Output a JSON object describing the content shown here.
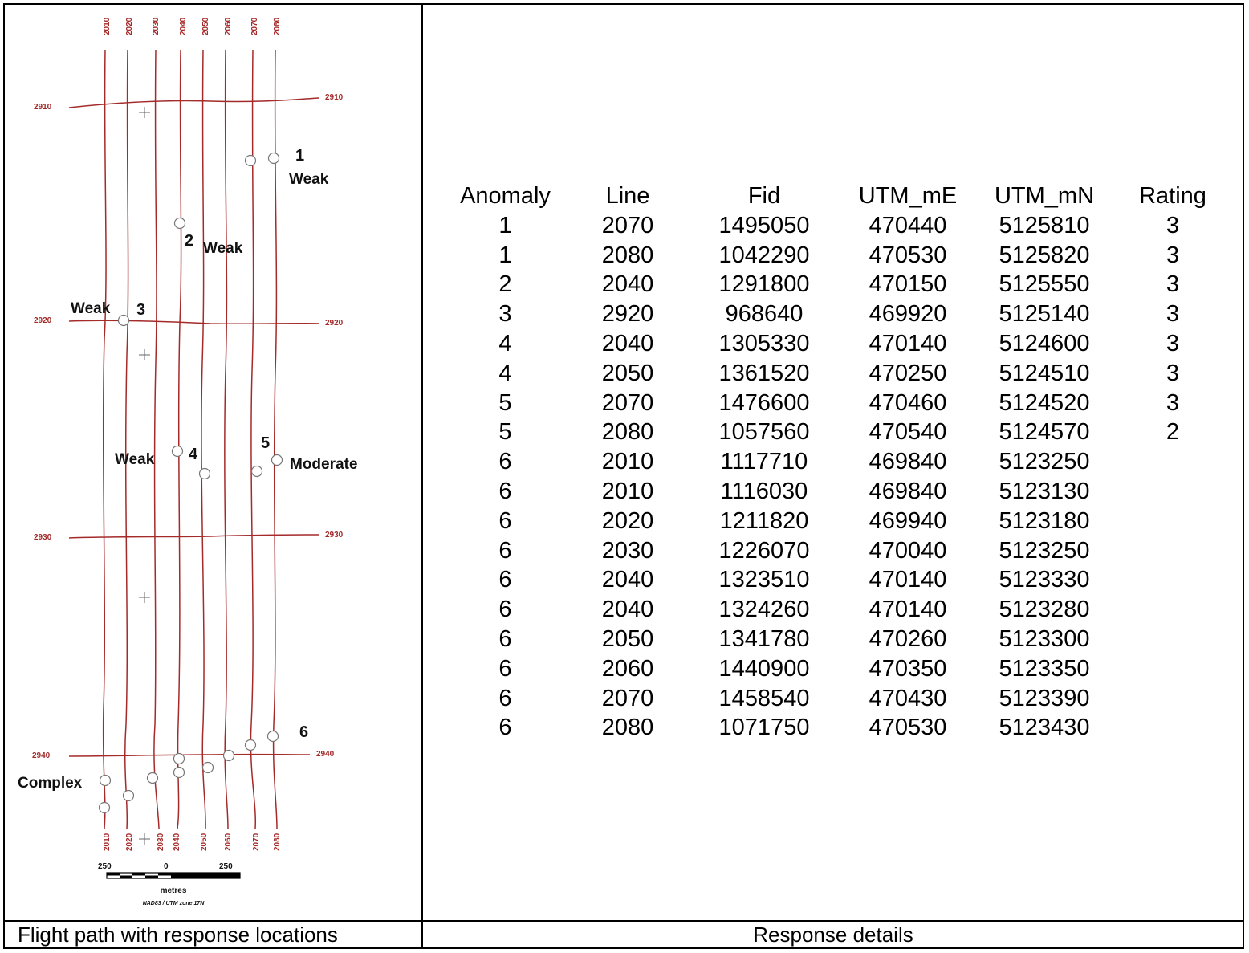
{
  "map": {
    "line_labels": [
      "2010",
      "2020",
      "2030",
      "2040",
      "2050",
      "2060",
      "2070",
      "2080"
    ],
    "tie_labels": [
      "2910",
      "2920",
      "2930",
      "2940"
    ],
    "annotations": [
      "1",
      "Weak",
      "2",
      "Weak",
      "Weak",
      "3",
      "Weak",
      "4",
      "5",
      "Moderate",
      "6",
      "Complex"
    ],
    "scale_left": "250",
    "scale_mid": "0",
    "scale_right": "250",
    "scale_units": "metres",
    "projection": "NAD83 / UTM zone 17N",
    "line_color": "#a52a2a"
  },
  "captions": {
    "left": "Flight path with response locations",
    "right": "Response details"
  },
  "table": {
    "headers": [
      "Anomaly",
      "Line",
      "Fid",
      "UTM_mE",
      "UTM_mN",
      "Rating"
    ],
    "rows": [
      [
        "1",
        "2070",
        "1495050",
        "470440",
        "5125810",
        "3"
      ],
      [
        "1",
        "2080",
        "1042290",
        "470530",
        "5125820",
        "3"
      ],
      [
        "2",
        "2040",
        "1291800",
        "470150",
        "5125550",
        "3"
      ],
      [
        "3",
        "2920",
        "968640",
        "469920",
        "5125140",
        "3"
      ],
      [
        "4",
        "2040",
        "1305330",
        "470140",
        "5124600",
        "3"
      ],
      [
        "4",
        "2050",
        "1361520",
        "470250",
        "5124510",
        "3"
      ],
      [
        "5",
        "2070",
        "1476600",
        "470460",
        "5124520",
        "3"
      ],
      [
        "5",
        "2080",
        "1057560",
        "470540",
        "5124570",
        "2"
      ],
      [
        "6",
        "2010",
        "1117710",
        "469840",
        "5123250",
        ""
      ],
      [
        "6",
        "2010",
        "1116030",
        "469840",
        "5123130",
        ""
      ],
      [
        "6",
        "2020",
        "1211820",
        "469940",
        "5123180",
        ""
      ],
      [
        "6",
        "2030",
        "1226070",
        "470040",
        "5123250",
        ""
      ],
      [
        "6",
        "2040",
        "1323510",
        "470140",
        "5123330",
        ""
      ],
      [
        "6",
        "2040",
        "1324260",
        "470140",
        "5123280",
        ""
      ],
      [
        "6",
        "2050",
        "1341780",
        "470260",
        "5123300",
        ""
      ],
      [
        "6",
        "2060",
        "1440900",
        "470350",
        "5123350",
        ""
      ],
      [
        "6",
        "2070",
        "1458540",
        "470430",
        "5123390",
        ""
      ],
      [
        "6",
        "2080",
        "1071750",
        "470530",
        "5123430",
        ""
      ]
    ]
  }
}
